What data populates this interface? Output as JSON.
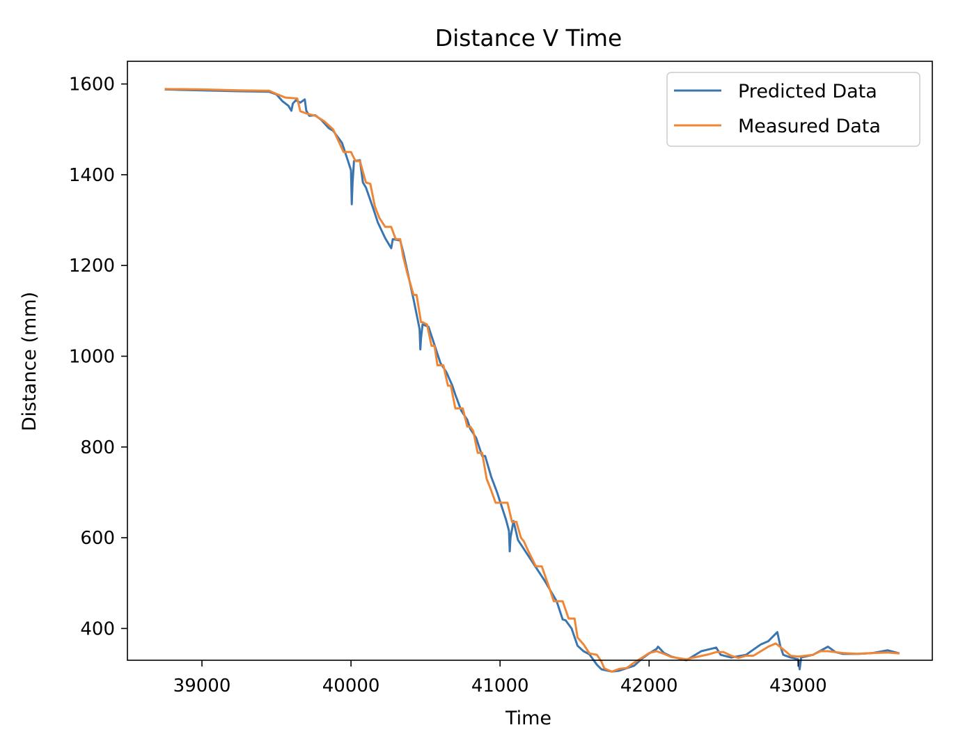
{
  "chart_data": {
    "type": "line",
    "title": "Distance V Time",
    "xlabel": "Time",
    "ylabel": "Distance (mm)",
    "xlim": [
      38500,
      43900
    ],
    "ylim": [
      330,
      1650
    ],
    "xticks": [
      39000,
      40000,
      41000,
      42000,
      43000
    ],
    "yticks": [
      400,
      600,
      800,
      1000,
      1200,
      1400,
      1600
    ],
    "grid": false,
    "legend_position": "top-right",
    "series": [
      {
        "name": "Predicted Data",
        "color": "#3b75af",
        "x": [
          38750,
          39000,
          39250,
          39450,
          39500,
          39540,
          39580,
          39600,
          39610,
          39630,
          39660,
          39690,
          39700,
          39720,
          39760,
          39800,
          39850,
          39880,
          39940,
          39970,
          40000,
          40005,
          40010,
          40020,
          40060,
          40080,
          40100,
          40150,
          40180,
          40230,
          40270,
          40280,
          40330,
          40350,
          40370,
          40420,
          40460,
          40465,
          40470,
          40480,
          40520,
          40560,
          40600,
          40640,
          40680,
          40700,
          40740,
          40780,
          40800,
          40840,
          40880,
          40900,
          40940,
          40980,
          41040,
          41060,
          41065,
          41070,
          41090,
          41120,
          41150,
          41200,
          41300,
          41380,
          41420,
          41440,
          41480,
          41520,
          41560,
          41600,
          41650,
          41680,
          41750,
          41800,
          41900,
          41950,
          42000,
          42050,
          42060,
          42100,
          42150,
          42250,
          42350,
          42450,
          42480,
          42550,
          42650,
          42750,
          42800,
          42860,
          42880,
          42900,
          42950,
          43000,
          43010,
          43020,
          43100,
          43200,
          43250,
          43300,
          43400,
          43500,
          43600,
          43680
        ],
        "y": [
          1588,
          1586,
          1584,
          1583,
          1577,
          1562,
          1552,
          1541,
          1557,
          1564,
          1559,
          1566,
          1541,
          1530,
          1531,
          1521,
          1503,
          1497,
          1470,
          1440,
          1410,
          1335,
          1380,
          1430,
          1432,
          1383,
          1372,
          1325,
          1295,
          1260,
          1238,
          1258,
          1255,
          1230,
          1200,
          1125,
          1060,
          1015,
          1040,
          1070,
          1065,
          1025,
          985,
          965,
          935,
          915,
          880,
          860,
          840,
          820,
          780,
          780,
          735,
          700,
          640,
          615,
          570,
          600,
          637,
          595,
          580,
          555,
          505,
          460,
          420,
          418,
          400,
          362,
          350,
          343,
          320,
          310,
          305,
          307,
          318,
          333,
          345,
          355,
          360,
          346,
          338,
          330,
          350,
          358,
          342,
          336,
          342,
          365,
          372,
          392,
          362,
          342,
          336,
          332,
          310,
          336,
          342,
          360,
          348,
          344,
          344,
          346,
          352,
          345
        ]
      },
      {
        "name": "Measured Data",
        "color": "#ef8636",
        "x": [
          38750,
          39000,
          39250,
          39450,
          39500,
          39560,
          39640,
          39660,
          39700,
          39760,
          39820,
          39880,
          39950,
          40000,
          40030,
          40060,
          40100,
          40130,
          40160,
          40190,
          40230,
          40270,
          40300,
          40330,
          40350,
          40380,
          40420,
          40440,
          40470,
          40480,
          40510,
          40540,
          40560,
          40580,
          40600,
          40620,
          40650,
          40670,
          40700,
          40730,
          40750,
          40780,
          40800,
          40820,
          40850,
          40880,
          40910,
          40940,
          40970,
          41000,
          41050,
          41080,
          41110,
          41140,
          41160,
          41190,
          41240,
          41280,
          41330,
          41360,
          41420,
          41460,
          41500,
          41520,
          41560,
          41600,
          41650,
          41680,
          41700,
          41750,
          41800,
          41850,
          41900,
          41950,
          42000,
          42050,
          42100,
          42150,
          42250,
          42300,
          42400,
          42450,
          42500,
          42550,
          42600,
          42650,
          42700,
          42750,
          42800,
          42850,
          42900,
          42950,
          43000,
          43050,
          43100,
          43150,
          43200,
          43300,
          43400,
          43500,
          43600,
          43680
        ],
        "y": [
          1589,
          1588,
          1586,
          1585,
          1578,
          1570,
          1568,
          1540,
          1535,
          1530,
          1518,
          1500,
          1450,
          1450,
          1430,
          1430,
          1383,
          1380,
          1330,
          1305,
          1285,
          1285,
          1258,
          1258,
          1220,
          1180,
          1135,
          1135,
          1075,
          1075,
          1070,
          1023,
          1023,
          980,
          980,
          980,
          935,
          935,
          885,
          885,
          885,
          845,
          845,
          835,
          787,
          787,
          730,
          705,
          677,
          677,
          677,
          635,
          635,
          600,
          592,
          570,
          537,
          537,
          490,
          460,
          460,
          422,
          422,
          380,
          365,
          345,
          342,
          327,
          312,
          305,
          311,
          313,
          325,
          335,
          346,
          350,
          344,
          337,
          332,
          336,
          343,
          348,
          348,
          340,
          335,
          340,
          340,
          350,
          360,
          367,
          354,
          340,
          338,
          340,
          342,
          350,
          350,
          346,
          344,
          346,
          347,
          345
        ]
      }
    ]
  }
}
